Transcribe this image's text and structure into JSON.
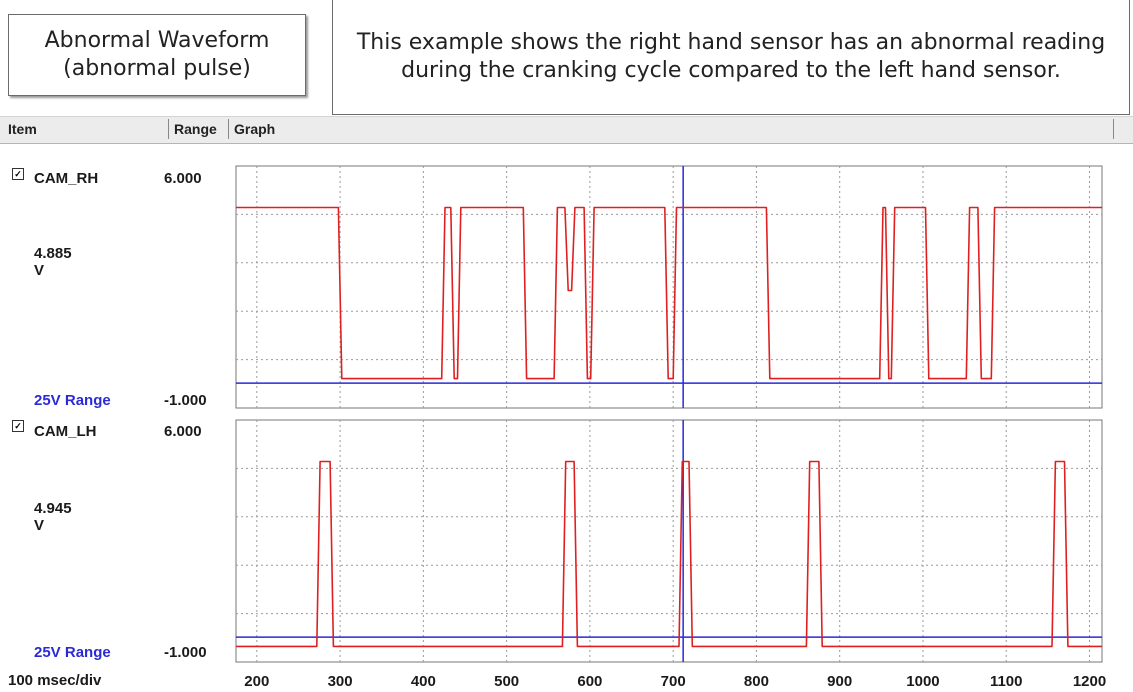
{
  "callouts": {
    "title": "Abnormal Waveform\n(abnormal pulse)",
    "description": "This example shows the right hand sensor has an abnormal reading\nduring the cranking cycle compared to the left hand sensor."
  },
  "header": {
    "item": "Item",
    "range": "Range",
    "graph": "Graph"
  },
  "footer": {
    "time_div": "100 msec/div"
  },
  "colors": {
    "trace": "#e02020",
    "cursor": "#2a2ad8",
    "grid": "#9a9a9a",
    "range_text": "#2b2bd6"
  },
  "chart_data": [
    {
      "type": "line",
      "channel": "CAM_RH",
      "checked": true,
      "ymax_label": "6.000",
      "ymin_label": "-1.000",
      "ylim": [
        -1,
        6
      ],
      "value_label": "4.885\nV",
      "range_label": "25V Range",
      "xlim": [
        175,
        1215
      ],
      "x_ticks": [
        200,
        300,
        400,
        500,
        600,
        700,
        800,
        900,
        1000,
        1100,
        1200
      ],
      "cursor_x": 712,
      "x": [
        175,
        298,
        302,
        422,
        426,
        433,
        437,
        441,
        445,
        450,
        454,
        520,
        524,
        557,
        561,
        570,
        574,
        578,
        582,
        593,
        597,
        601,
        605,
        690,
        694,
        700,
        704,
        812,
        816,
        948,
        952,
        955,
        959,
        962,
        966,
        1003,
        1007,
        1052,
        1056,
        1066,
        1070,
        1082,
        1086,
        1215
      ],
      "y": [
        4.8,
        4.8,
        -0.15,
        -0.15,
        4.8,
        4.8,
        -0.15,
        -0.15,
        4.8,
        4.8,
        4.8,
        4.8,
        -0.15,
        -0.15,
        4.8,
        4.8,
        2.4,
        2.4,
        4.8,
        4.8,
        -0.15,
        -0.15,
        4.8,
        4.8,
        -0.15,
        -0.15,
        4.8,
        4.8,
        -0.15,
        -0.15,
        4.8,
        4.8,
        -0.15,
        -0.15,
        4.8,
        4.8,
        -0.15,
        -0.15,
        4.8,
        4.8,
        -0.15,
        -0.15,
        4.8,
        4.8
      ]
    },
    {
      "type": "line",
      "channel": "CAM_LH",
      "checked": true,
      "ymax_label": "6.000",
      "ymin_label": "-1.000",
      "ylim": [
        -1,
        6
      ],
      "value_label": "4.945\nV",
      "range_label": "25V Range",
      "xlim": [
        175,
        1215
      ],
      "x_ticks": [
        200,
        300,
        400,
        500,
        600,
        700,
        800,
        900,
        1000,
        1100,
        1200
      ],
      "cursor_x": 712,
      "x": [
        175,
        272,
        276,
        288,
        292,
        567,
        571,
        581,
        585,
        707,
        711,
        719,
        723,
        860,
        864,
        875,
        879,
        1155,
        1159,
        1170,
        1174,
        1215
      ],
      "y": [
        -0.55,
        -0.55,
        4.8,
        4.8,
        -0.55,
        -0.55,
        4.8,
        4.8,
        -0.55,
        -0.55,
        4.8,
        4.8,
        -0.55,
        -0.55,
        4.8,
        4.8,
        -0.55,
        -0.55,
        4.8,
        4.8,
        -0.55,
        -0.55
      ]
    }
  ]
}
